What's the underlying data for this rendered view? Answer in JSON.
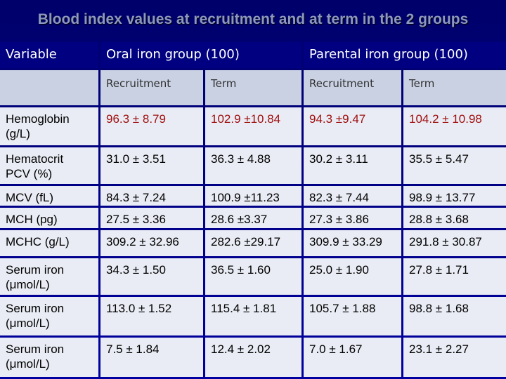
{
  "title": "Blood index values at recruitment and at term in the 2 groups",
  "table": {
    "header": {
      "variable": "Variable",
      "groups": [
        "Oral iron group (100)",
        "Parental iron group (100)"
      ]
    },
    "subheaders": [
      "Recruitment",
      "Term",
      "Recruitment",
      "Term"
    ],
    "rows": [
      [
        "Hemoglobin (g/L)",
        "96.3 ± 8.79",
        "102.9 ±10.84",
        "94.3 ±9.47",
        "104.2 ± 10.98"
      ],
      [
        "Hematocrit PCV (%)",
        "31.0 ± 3.51",
        "36.3 ± 4.88",
        "30.2 ± 3.11",
        "35.5 ± 5.47"
      ],
      [
        "MCV (fL)",
        "84.3 ± 7.24",
        "100.9 ±11.23",
        "82.3 ± 7.44",
        "98.9 ± 13.77"
      ],
      [
        "MCH (pg)",
        "27.5 ± 3.36",
        "28.6 ±3.37",
        "27.3 ± 3.86",
        "28.8 ± 3.68"
      ],
      [
        "MCHC (g/L)",
        "309.2 ± 32.96",
        "282.6 ±29.17",
        "309.9 ± 33.29",
        "291.8 ± 30.87"
      ],
      [
        "Serum iron (μmol/L)",
        "34.3 ± 1.50",
        "36.5 ± 1.60",
        "25.0 ± 1.90",
        "27.8 ± 1.71"
      ],
      [
        "Serum iron (μmol/L)",
        "113.0 ± 1.52",
        "115.4 ± 1.81",
        "105.7 ± 1.88",
        "98.8 ± 1.68"
      ],
      [
        "Serum iron (μmol/L)",
        "7.5 ± 1.84",
        "12.4 ± 2.02",
        "7.0 ± 1.67",
        "23.1 ± 2.27"
      ]
    ]
  }
}
